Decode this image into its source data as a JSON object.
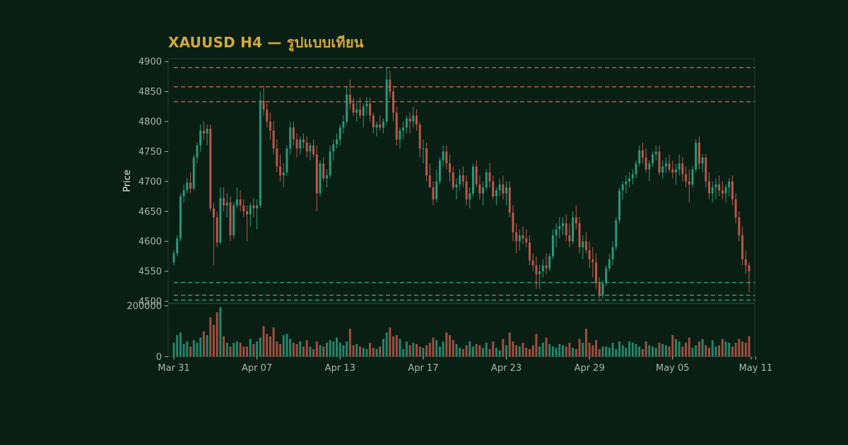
{
  "chart_data": {
    "type": "candlestick",
    "title": "XAUUSD H4 — รูปแบบเทียน",
    "ylabel": "Price",
    "price_axis": {
      "ylim": [
        4497,
        4905
      ],
      "ticks": [
        4500,
        4550,
        4600,
        4650,
        4700,
        4750,
        4800,
        4850,
        4900
      ]
    },
    "volume_axis": {
      "ylim": [
        0,
        200000
      ],
      "ticks": [
        0,
        200000
      ]
    },
    "x_ticks": [
      "Mar 31",
      "Apr 07",
      "Apr 13",
      "Apr 17",
      "Apr 23",
      "Apr 29",
      "May 05",
      "May 11"
    ],
    "x_tick_bar_index": [
      0,
      25,
      50,
      75,
      100,
      125,
      150,
      175
    ],
    "resistance_levels": [
      4890,
      4858,
      4833
    ],
    "support_levels": [
      4531,
      4510,
      4502
    ],
    "colors": {
      "background": "#0a1f14",
      "up": "#2a9a7c",
      "down": "#c0574a",
      "resistance": "#c0574a",
      "support": "#2a9a7c",
      "title": "#d4a838",
      "frame": "#243a2e"
    },
    "bars": [
      [
        4565,
        4585,
        4560,
        4580,
        55000
      ],
      [
        4580,
        4610,
        4575,
        4605,
        85000
      ],
      [
        4605,
        4680,
        4600,
        4675,
        95000
      ],
      [
        4675,
        4695,
        4665,
        4685,
        50000
      ],
      [
        4685,
        4705,
        4680,
        4698,
        60000
      ],
      [
        4698,
        4715,
        4680,
        4688,
        40000
      ],
      [
        4688,
        4745,
        4685,
        4740,
        65000
      ],
      [
        4740,
        4765,
        4730,
        4760,
        55000
      ],
      [
        4760,
        4795,
        4750,
        4785,
        75000
      ],
      [
        4785,
        4800,
        4770,
        4780,
        100000
      ],
      [
        4780,
        4795,
        4760,
        4788,
        85000
      ],
      [
        4788,
        4795,
        4650,
        4655,
        155000
      ],
      [
        4655,
        4665,
        4560,
        4640,
        125000
      ],
      [
        4640,
        4650,
        4590,
        4598,
        175000
      ],
      [
        4598,
        4690,
        4595,
        4672,
        195000
      ],
      [
        4672,
        4690,
        4650,
        4660,
        80000
      ],
      [
        4660,
        4680,
        4640,
        4665,
        55000
      ],
      [
        4665,
        4675,
        4600,
        4610,
        40000
      ],
      [
        4610,
        4665,
        4605,
        4660,
        55000
      ],
      [
        4660,
        4690,
        4655,
        4670,
        60000
      ],
      [
        4670,
        4685,
        4650,
        4660,
        55000
      ],
      [
        4660,
        4670,
        4640,
        4650,
        40000
      ],
      [
        4650,
        4660,
        4600,
        4645,
        40000
      ],
      [
        4645,
        4665,
        4625,
        4660,
        70000
      ],
      [
        4660,
        4672,
        4640,
        4655,
        50000
      ],
      [
        4655,
        4670,
        4620,
        4660,
        60000
      ],
      [
        4660,
        4850,
        4655,
        4835,
        75000
      ],
      [
        4835,
        4860,
        4810,
        4820,
        120000
      ],
      [
        4820,
        4830,
        4790,
        4800,
        90000
      ],
      [
        4800,
        4815,
        4770,
        4785,
        80000
      ],
      [
        4785,
        4800,
        4745,
        4755,
        115000
      ],
      [
        4755,
        4770,
        4715,
        4725,
        60000
      ],
      [
        4725,
        4745,
        4700,
        4710,
        50000
      ],
      [
        4710,
        4730,
        4690,
        4715,
        85000
      ],
      [
        4715,
        4760,
        4710,
        4755,
        90000
      ],
      [
        4755,
        4800,
        4745,
        4790,
        70000
      ],
      [
        4790,
        4800,
        4760,
        4770,
        55000
      ],
      [
        4770,
        4780,
        4740,
        4755,
        50000
      ],
      [
        4755,
        4775,
        4745,
        4770,
        60000
      ],
      [
        4770,
        4780,
        4755,
        4765,
        40000
      ],
      [
        4765,
        4775,
        4740,
        4750,
        65000
      ],
      [
        4750,
        4765,
        4735,
        4760,
        40000
      ],
      [
        4760,
        4770,
        4740,
        4745,
        30000
      ],
      [
        4745,
        4760,
        4650,
        4680,
        60000
      ],
      [
        4680,
        4735,
        4675,
        4730,
        45000
      ],
      [
        4730,
        4740,
        4700,
        4705,
        40000
      ],
      [
        4705,
        4720,
        4690,
        4710,
        55000
      ],
      [
        4710,
        4760,
        4705,
        4750,
        65000
      ],
      [
        4750,
        4770,
        4735,
        4762,
        60000
      ],
      [
        4762,
        4780,
        4755,
        4770,
        75000
      ],
      [
        4770,
        4795,
        4760,
        4790,
        55000
      ],
      [
        4790,
        4810,
        4780,
        4800,
        45000
      ],
      [
        4800,
        4860,
        4795,
        4845,
        60000
      ],
      [
        4845,
        4870,
        4820,
        4830,
        110000
      ],
      [
        4830,
        4840,
        4810,
        4815,
        45000
      ],
      [
        4815,
        4835,
        4800,
        4820,
        50000
      ],
      [
        4820,
        4840,
        4805,
        4810,
        40000
      ],
      [
        4810,
        4830,
        4790,
        4825,
        35000
      ],
      [
        4825,
        4840,
        4810,
        4830,
        30000
      ],
      [
        4830,
        4840,
        4800,
        4810,
        55000
      ],
      [
        4810,
        4815,
        4780,
        4790,
        35000
      ],
      [
        4790,
        4800,
        4775,
        4795,
        30000
      ],
      [
        4795,
        4810,
        4785,
        4790,
        40000
      ],
      [
        4790,
        4805,
        4780,
        4800,
        70000
      ],
      [
        4800,
        4890,
        4795,
        4870,
        95000
      ],
      [
        4870,
        4885,
        4840,
        4850,
        115000
      ],
      [
        4850,
        4860,
        4800,
        4815,
        80000
      ],
      [
        4815,
        4825,
        4760,
        4770,
        85000
      ],
      [
        4770,
        4790,
        4755,
        4785,
        70000
      ],
      [
        4785,
        4800,
        4770,
        4790,
        30000
      ],
      [
        4790,
        4810,
        4780,
        4805,
        60000
      ],
      [
        4805,
        4815,
        4780,
        4800,
        45000
      ],
      [
        4800,
        4825,
        4790,
        4810,
        55000
      ],
      [
        4810,
        4820,
        4785,
        4795,
        50000
      ],
      [
        4795,
        4800,
        4740,
        4755,
        40000
      ],
      [
        4755,
        4770,
        4730,
        4755,
        35000
      ],
      [
        4755,
        4765,
        4700,
        4710,
        45000
      ],
      [
        4710,
        4730,
        4690,
        4690,
        55000
      ],
      [
        4690,
        4700,
        4660,
        4670,
        75000
      ],
      [
        4670,
        4720,
        4665,
        4700,
        65000
      ],
      [
        4700,
        4740,
        4695,
        4735,
        40000
      ],
      [
        4735,
        4760,
        4725,
        4750,
        60000
      ],
      [
        4750,
        4760,
        4720,
        4730,
        95000
      ],
      [
        4730,
        4745,
        4700,
        4715,
        85000
      ],
      [
        4715,
        4725,
        4685,
        4690,
        65000
      ],
      [
        4690,
        4705,
        4670,
        4695,
        50000
      ],
      [
        4695,
        4720,
        4685,
        4710,
        35000
      ],
      [
        4710,
        4725,
        4690,
        4700,
        30000
      ],
      [
        4700,
        4710,
        4660,
        4670,
        45000
      ],
      [
        4670,
        4690,
        4655,
        4680,
        60000
      ],
      [
        4680,
        4730,
        4675,
        4725,
        40000
      ],
      [
        4725,
        4735,
        4690,
        4695,
        50000
      ],
      [
        4695,
        4710,
        4670,
        4680,
        45000
      ],
      [
        4680,
        4700,
        4660,
        4690,
        35000
      ],
      [
        4690,
        4720,
        4685,
        4715,
        55000
      ],
      [
        4715,
        4730,
        4690,
        4700,
        30000
      ],
      [
        4700,
        4710,
        4670,
        4675,
        60000
      ],
      [
        4675,
        4690,
        4660,
        4685,
        35000
      ],
      [
        4685,
        4705,
        4675,
        4695,
        25000
      ],
      [
        4695,
        4710,
        4670,
        4680,
        70000
      ],
      [
        4680,
        4700,
        4660,
        4690,
        45000
      ],
      [
        4690,
        4700,
        4640,
        4648,
        95000
      ],
      [
        4648,
        4660,
        4600,
        4615,
        60000
      ],
      [
        4615,
        4630,
        4580,
        4600,
        45000
      ],
      [
        4600,
        4620,
        4585,
        4610,
        40000
      ],
      [
        4610,
        4625,
        4595,
        4605,
        55000
      ],
      [
        4605,
        4620,
        4590,
        4598,
        35000
      ],
      [
        4598,
        4610,
        4560,
        4568,
        30000
      ],
      [
        4568,
        4580,
        4550,
        4560,
        45000
      ],
      [
        4560,
        4575,
        4520,
        4545,
        90000
      ],
      [
        4545,
        4560,
        4520,
        4550,
        40000
      ],
      [
        4550,
        4570,
        4540,
        4560,
        55000
      ],
      [
        4560,
        4580,
        4545,
        4555,
        75000
      ],
      [
        4555,
        4580,
        4550,
        4575,
        50000
      ],
      [
        4575,
        4620,
        4570,
        4610,
        40000
      ],
      [
        4610,
        4630,
        4590,
        4620,
        35000
      ],
      [
        4620,
        4640,
        4605,
        4625,
        50000
      ],
      [
        4625,
        4640,
        4610,
        4630,
        45000
      ],
      [
        4630,
        4645,
        4600,
        4610,
        40000
      ],
      [
        4610,
        4630,
        4590,
        4600,
        55000
      ],
      [
        4600,
        4650,
        4595,
        4640,
        35000
      ],
      [
        4640,
        4660,
        4620,
        4630,
        30000
      ],
      [
        4630,
        4640,
        4580,
        4590,
        70000
      ],
      [
        4590,
        4610,
        4570,
        4600,
        55000
      ],
      [
        4600,
        4615,
        4580,
        4585,
        110000
      ],
      [
        4585,
        4600,
        4555,
        4570,
        55000
      ],
      [
        4570,
        4590,
        4540,
        4565,
        45000
      ],
      [
        4565,
        4580,
        4520,
        4530,
        65000
      ],
      [
        4530,
        4540,
        4505,
        4510,
        30000
      ],
      [
        4510,
        4535,
        4505,
        4530,
        40000
      ],
      [
        4530,
        4560,
        4525,
        4555,
        40000
      ],
      [
        4555,
        4580,
        4550,
        4570,
        35000
      ],
      [
        4570,
        4600,
        4560,
        4590,
        55000
      ],
      [
        4590,
        4640,
        4585,
        4635,
        30000
      ],
      [
        4635,
        4690,
        4630,
        4685,
        60000
      ],
      [
        4685,
        4700,
        4670,
        4695,
        45000
      ],
      [
        4695,
        4710,
        4680,
        4700,
        35000
      ],
      [
        4700,
        4715,
        4690,
        4705,
        60000
      ],
      [
        4705,
        4720,
        4695,
        4712,
        55000
      ],
      [
        4712,
        4735,
        4705,
        4730,
        50000
      ],
      [
        4730,
        4760,
        4725,
        4752,
        40000
      ],
      [
        4752,
        4765,
        4730,
        4740,
        30000
      ],
      [
        4740,
        4755,
        4715,
        4720,
        60000
      ],
      [
        4720,
        4735,
        4700,
        4730,
        45000
      ],
      [
        4730,
        4750,
        4725,
        4745,
        40000
      ],
      [
        4745,
        4760,
        4735,
        4750,
        35000
      ],
      [
        4750,
        4760,
        4710,
        4715,
        55000
      ],
      [
        4715,
        4735,
        4705,
        4725,
        50000
      ],
      [
        4725,
        4740,
        4715,
        4730,
        45000
      ],
      [
        4730,
        4745,
        4715,
        4720,
        40000
      ],
      [
        4720,
        4735,
        4705,
        4715,
        85000
      ],
      [
        4715,
        4730,
        4695,
        4720,
        70000
      ],
      [
        4720,
        4745,
        4710,
        4730,
        60000
      ],
      [
        4730,
        4740,
        4700,
        4712,
        40000
      ],
      [
        4712,
        4725,
        4690,
        4700,
        55000
      ],
      [
        4700,
        4720,
        4665,
        4695,
        75000
      ],
      [
        4695,
        4725,
        4690,
        4720,
        35000
      ],
      [
        4720,
        4770,
        4715,
        4765,
        45000
      ],
      [
        4765,
        4775,
        4720,
        4730,
        60000
      ],
      [
        4730,
        4745,
        4715,
        4740,
        70000
      ],
      [
        4740,
        4745,
        4690,
        4700,
        45000
      ],
      [
        4700,
        4715,
        4670,
        4680,
        35000
      ],
      [
        4680,
        4700,
        4665,
        4690,
        65000
      ],
      [
        4690,
        4705,
        4670,
        4695,
        40000
      ],
      [
        4695,
        4710,
        4675,
        4685,
        45000
      ],
      [
        4685,
        4700,
        4670,
        4680,
        70000
      ],
      [
        4680,
        4695,
        4665,
        4690,
        60000
      ],
      [
        4690,
        4705,
        4675,
        4700,
        55000
      ],
      [
        4700,
        4710,
        4660,
        4670,
        40000
      ],
      [
        4670,
        4680,
        4630,
        4640,
        55000
      ],
      [
        4640,
        4650,
        4600,
        4610,
        70000
      ],
      [
        4610,
        4625,
        4560,
        4570,
        60000
      ],
      [
        4570,
        4585,
        4545,
        4560,
        55000
      ],
      [
        4560,
        4565,
        4515,
        4550,
        80000
      ]
    ]
  }
}
